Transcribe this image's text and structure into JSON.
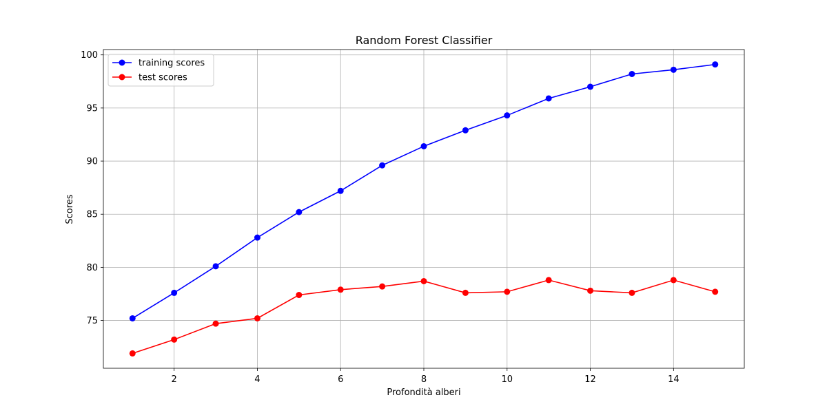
{
  "chart_data": {
    "type": "line",
    "title": "Random Forest Classifier",
    "xlabel": "Profondità alberi",
    "ylabel": "Scores",
    "x": [
      1,
      2,
      3,
      4,
      5,
      6,
      7,
      8,
      9,
      10,
      11,
      12,
      13,
      14,
      15
    ],
    "xlim": [
      0.3,
      15.7
    ],
    "ylim": [
      70.5,
      100.5
    ],
    "xticks": [
      2,
      4,
      6,
      8,
      10,
      12,
      14
    ],
    "yticks": [
      75,
      80,
      85,
      90,
      95,
      100
    ],
    "grid": true,
    "legend_position": "top-left",
    "series": [
      {
        "name": "training scores",
        "color": "#0000ff",
        "marker": "circle",
        "values": [
          75.2,
          77.6,
          80.1,
          82.8,
          85.2,
          87.2,
          89.6,
          91.4,
          92.9,
          94.3,
          95.9,
          97.0,
          98.2,
          98.6,
          99.1
        ]
      },
      {
        "name": "test scores",
        "color": "#ff0000",
        "marker": "circle",
        "values": [
          71.9,
          73.2,
          74.7,
          75.2,
          77.4,
          77.9,
          78.2,
          78.7,
          77.6,
          77.7,
          78.8,
          77.8,
          77.6,
          78.8,
          77.7
        ]
      }
    ]
  }
}
